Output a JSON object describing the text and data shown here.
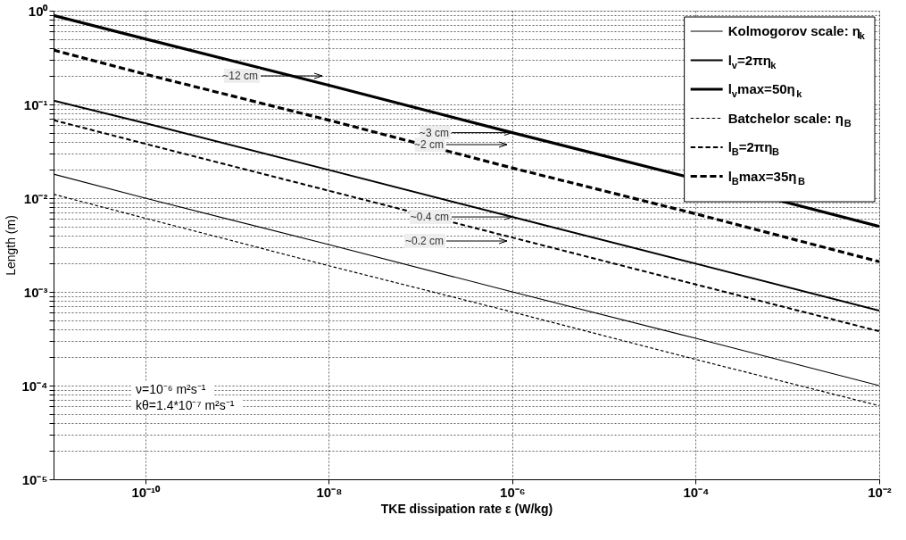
{
  "chart_data": {
    "type": "line",
    "xlabel": "TKE dissipation rate ε (W/kg)",
    "ylabel": "Length (m)",
    "x": [
      1e-11,
      1e-10,
      1e-08,
      1e-06,
      0.0001,
      0.01
    ],
    "series": [
      {
        "name": "Kolmogorov scale: η$_{k}$",
        "color": "#000000",
        "line_style": "solid",
        "values": [
          0.018,
          0.01,
          0.0032,
          0.001,
          0.00032,
          0.0001
        ]
      },
      {
        "name": "l$_{v}$=2πη$_{k}$",
        "color": "#000000",
        "line_style": "solid",
        "values": [
          0.11,
          0.063,
          0.02,
          0.0063,
          0.002,
          0.00063
        ]
      },
      {
        "name": "l$_{v}$max=50η$_{k}$",
        "color": "#000000",
        "line_style": "solid",
        "values": [
          0.89,
          0.5,
          0.16,
          0.05,
          0.016,
          0.005
        ]
      },
      {
        "name": "Batchelor scale: η$_{B}$",
        "color": "#000000",
        "line_style": "dashed",
        "values": [
          0.011,
          0.0061,
          0.0019,
          0.00061,
          0.00019,
          6.1e-05
        ]
      },
      {
        "name": "l$_{B}$=2πη$_{B}$",
        "color": "#000000",
        "line_style": "dashed",
        "values": [
          0.068,
          0.038,
          0.012,
          0.0038,
          0.0012,
          0.00038
        ]
      },
      {
        "name": "l$_{B}$max=35η$_{B}$",
        "color": "#000000",
        "line_style": "dashed",
        "values": [
          0.38,
          0.21,
          0.068,
          0.021,
          0.0068,
          0.0021
        ]
      }
    ],
    "log": "xy",
    "xlim": [
      1e-11,
      0.01
    ],
    "xticks": [
      {
        "value": 1e-10,
        "label": "10⁻¹⁰"
      },
      {
        "value": 1e-08,
        "label": "10⁻⁸"
      },
      {
        "value": 1e-06,
        "label": "10⁻⁶"
      },
      {
        "value": 0.0001,
        "label": "10⁻⁴"
      },
      {
        "value": 0.01,
        "label": "10⁻²"
      }
    ],
    "ylim": [
      1e-05,
      1
    ],
    "yticks": [
      {
        "value": 1e-05,
        "label": "10⁻⁵"
      },
      {
        "value": 2e-05,
        "label": null
      },
      {
        "value": 3e-05,
        "label": null
      },
      {
        "value": 4e-05,
        "label": null
      },
      {
        "value": 5e-05,
        "label": null
      },
      {
        "value": 6e-05,
        "label": null
      },
      {
        "value": 7e-05,
        "label": null
      },
      {
        "value": 8e-05,
        "label": null
      },
      {
        "value": 9e-05,
        "label": null
      },
      {
        "value": 0.0001,
        "label": "10⁻⁴"
      },
      {
        "value": 0.0002,
        "label": null
      },
      {
        "value": 0.0003,
        "label": null
      },
      {
        "value": 0.0004,
        "label": null
      },
      {
        "value": 0.0005,
        "label": null
      },
      {
        "value": 0.0006,
        "label": null
      },
      {
        "value": 0.0007,
        "label": null
      },
      {
        "value": 0.0008,
        "label": null
      },
      {
        "value": 0.0009,
        "label": null
      },
      {
        "value": 0.001,
        "label": "10⁻³"
      },
      {
        "value": 0.002,
        "label": null
      },
      {
        "value": 0.003,
        "label": null
      },
      {
        "value": 0.004,
        "label": null
      },
      {
        "value": 0.005,
        "label": null
      },
      {
        "value": 0.006,
        "label": null
      },
      {
        "value": 0.007,
        "label": null
      },
      {
        "value": 0.008,
        "label": null
      },
      {
        "value": 0.009,
        "label": null
      },
      {
        "value": 0.01,
        "label": "10⁻²"
      },
      {
        "value": 0.02,
        "label": null
      },
      {
        "value": 0.03,
        "label": null
      },
      {
        "value": 0.04,
        "label": null
      },
      {
        "value": 0.05,
        "label": null
      },
      {
        "value": 0.06,
        "label": null
      },
      {
        "value": 0.07,
        "label": null
      },
      {
        "value": 0.08,
        "label": null
      },
      {
        "value": 0.09,
        "label": null
      },
      {
        "value": 0.1,
        "label": "10⁻¹"
      },
      {
        "value": 0.2,
        "label": null
      },
      {
        "value": 0.3,
        "label": null
      },
      {
        "value": 0.4,
        "label": null
      },
      {
        "value": 0.5,
        "label": null
      },
      {
        "value": 0.6,
        "label": null
      },
      {
        "value": 0.7,
        "label": null
      },
      {
        "value": 0.8,
        "label": null
      },
      {
        "value": 0.9,
        "label": null
      },
      {
        "value": 1,
        "label": "10⁰"
      }
    ],
    "grid": true,
    "legend": "top right",
    "annotations": [
      "~12 cm",
      {
        "text": "~3 cm",
        "x": 1e-06,
        "y": 0.05
      },
      "~2 cm",
      {
        "text": "~0.4 cm",
        "x": 1e-06,
        "y": 0.0063
      },
      "~0.2 cm",
      "ν=10⁻⁶ m²s⁻¹",
      "kθ=1.4*10⁻⁷ m²s⁻¹"
    ]
  }
}
